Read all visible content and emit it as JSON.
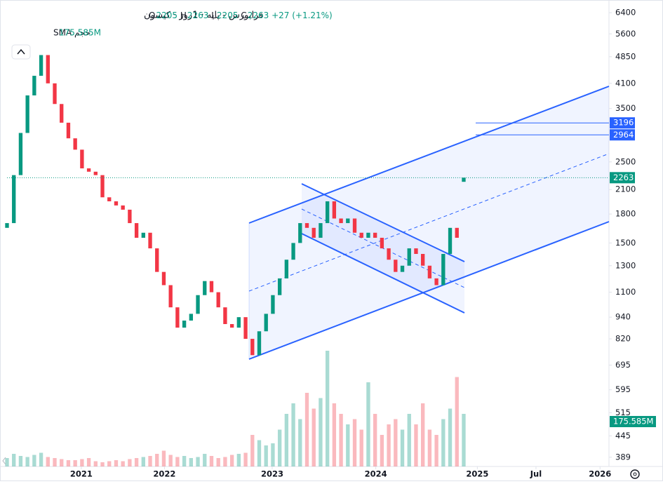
{
  "chart_data": {
    "type": "candlestick",
    "title": "فرابورس - پایه · 1روز · کیسون",
    "ohlc_labels": [
      "O",
      "H",
      "L",
      "C"
    ],
    "ohlc_values": [
      2205,
      2263,
      2205,
      2263
    ],
    "change": "+27 (+1.21%)",
    "volume_title": "حجم SMA",
    "volume_sma_label": "175.585M",
    "last_price": 2263,
    "levels": [
      3196,
      2964
    ],
    "log_scale": true,
    "up_color": "#089981",
    "down_color": "#f23645",
    "drawing_color": "#2962ff",
    "ylim": [
      367,
      6780
    ],
    "yticks": [
      6400,
      5600,
      4850,
      4100,
      3500,
      2500,
      2100,
      1800,
      1500,
      1300,
      1100,
      940,
      820,
      695,
      595,
      515,
      445,
      389
    ],
    "xlim": [
      0,
      88
    ],
    "xticks": [
      {
        "value": 10.9,
        "label": "2021"
      },
      {
        "value": 23.1,
        "label": "2022"
      },
      {
        "value": 38.9,
        "label": "2023"
      },
      {
        "value": 54.1,
        "label": "2024"
      },
      {
        "value": 69.0,
        "label": "2025"
      },
      {
        "value": 77.6,
        "label": "Jul"
      },
      {
        "value": 87.0,
        "label": "2026"
      }
    ],
    "open": [
      1650,
      1700,
      2300,
      3000,
      3800,
      4300,
      4900,
      4100,
      3600,
      3200,
      2900,
      2700,
      2400,
      2350,
      2300,
      2000,
      1950,
      1900,
      1850,
      1700,
      1550,
      1600,
      1450,
      1250,
      1150,
      1000,
      880,
      920,
      960,
      1080,
      1180,
      1100,
      1000,
      900,
      880,
      940,
      820,
      740,
      860,
      960,
      1080,
      1200,
      1350,
      1500,
      1700,
      1650,
      1550,
      1700,
      1950,
      1750,
      1700,
      1750,
      1600,
      1550,
      1600,
      1550,
      1450,
      1350,
      1250,
      1300,
      1450,
      1400,
      1300,
      1200,
      1150,
      1400,
      1650,
      2205
    ],
    "close": [
      1700,
      2300,
      3000,
      3800,
      4300,
      4900,
      4100,
      3600,
      3200,
      2900,
      2700,
      2400,
      2350,
      2300,
      2000,
      1950,
      1900,
      1850,
      1700,
      1550,
      1600,
      1450,
      1250,
      1150,
      1000,
      880,
      920,
      960,
      1080,
      1180,
      1100,
      1000,
      900,
      880,
      940,
      820,
      740,
      860,
      960,
      1080,
      1200,
      1350,
      1500,
      1700,
      1650,
      1550,
      1700,
      1950,
      1750,
      1700,
      1750,
      1600,
      1550,
      1600,
      1550,
      1450,
      1350,
      1250,
      1300,
      1450,
      1400,
      1300,
      1200,
      1150,
      1400,
      1650,
      1550,
      2263
    ],
    "volume": [
      80,
      120,
      100,
      90,
      110,
      130,
      90,
      80,
      70,
      60,
      60,
      70,
      80,
      50,
      40,
      50,
      60,
      50,
      70,
      80,
      90,
      100,
      120,
      150,
      110,
      90,
      100,
      80,
      90,
      120,
      100,
      80,
      90,
      110,
      120,
      130,
      300,
      250,
      200,
      220,
      350,
      500,
      600,
      450,
      700,
      550,
      650,
      1100,
      600,
      500,
      400,
      450,
      350,
      800,
      500,
      300,
      400,
      450,
      350,
      500,
      400,
      600,
      350,
      300,
      450,
      550,
      850,
      500
    ]
  }
}
